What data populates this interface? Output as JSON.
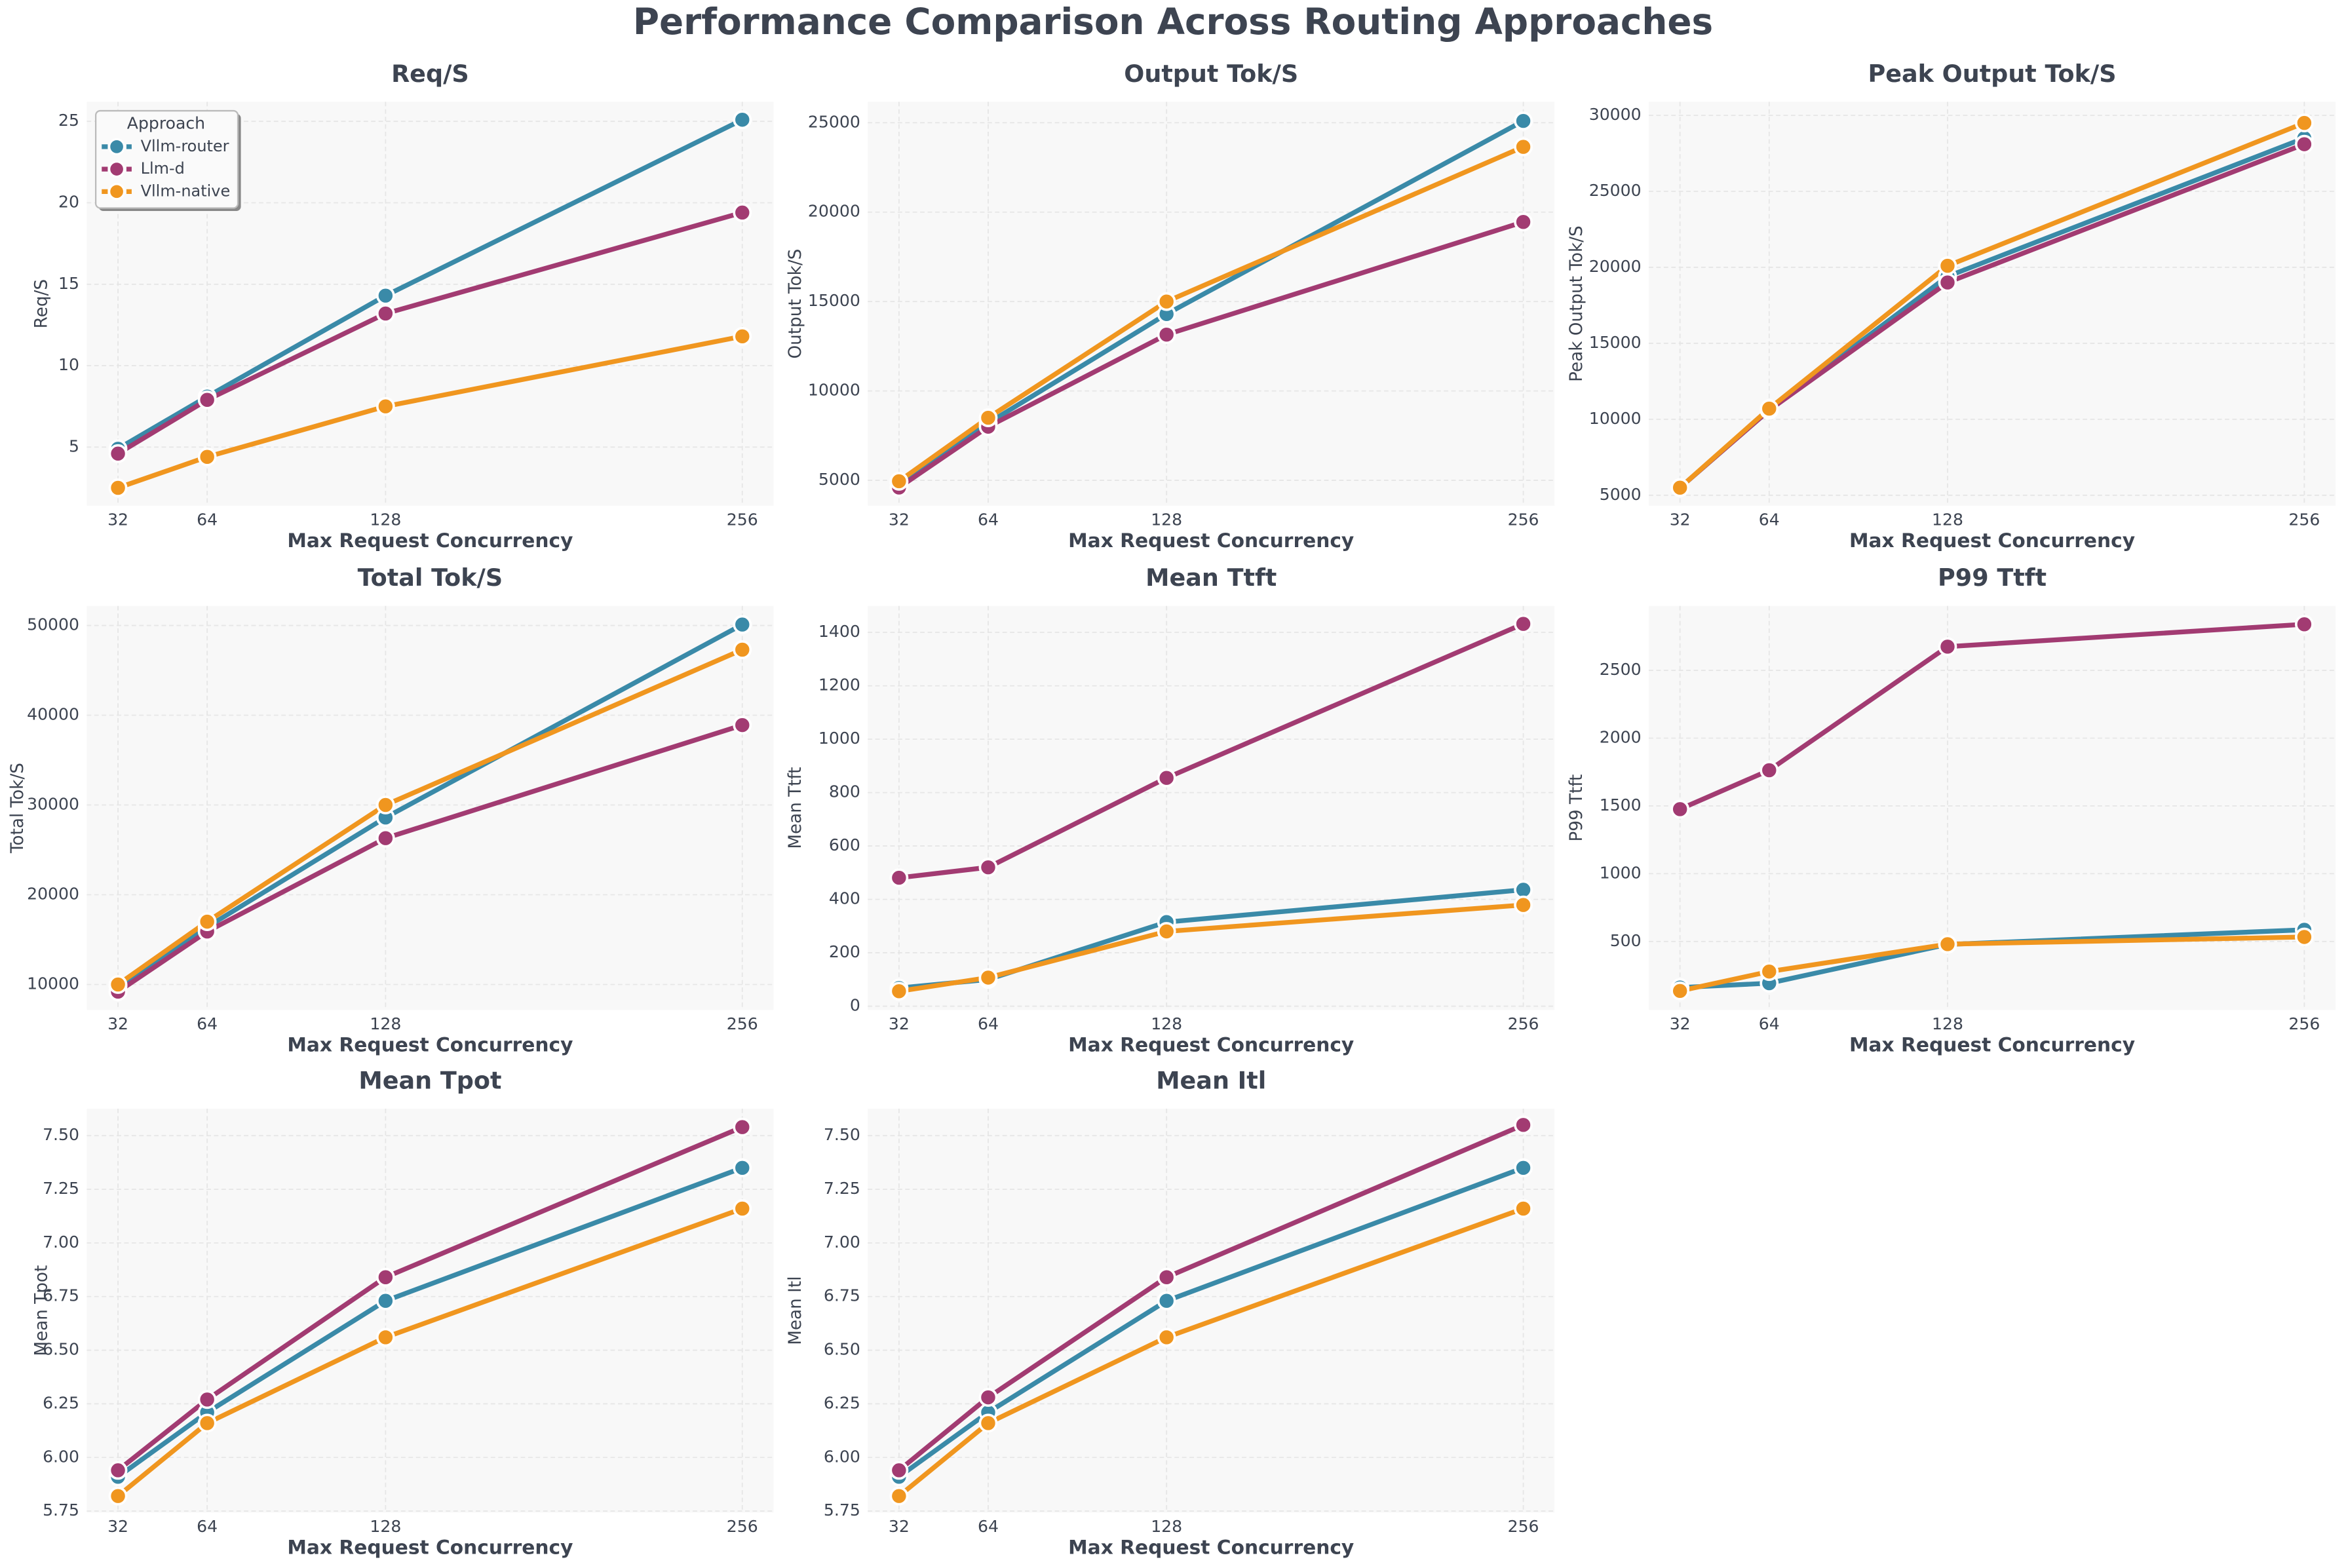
{
  "title": "Performance Comparison Across Routing Approaches",
  "chart_data": [
    {
      "type": "line",
      "title": "Req/S",
      "xlabel": "Max Request Concurrency",
      "ylabel": "Req/S",
      "x": [
        32,
        64,
        128,
        256
      ],
      "xlim": [
        20.8,
        267.2
      ],
      "xticks": [
        32,
        64,
        128,
        256
      ],
      "ylim": [
        1.4,
        26.2
      ],
      "yticks": [
        5,
        10,
        15,
        20,
        25
      ],
      "grid": true,
      "legend": "upper left",
      "legend_title": "Approach",
      "series": [
        {
          "name": "Vllm-router",
          "color": "#3a8aa8",
          "values": [
            4.9,
            8.1,
            14.3,
            25.1
          ]
        },
        {
          "name": "Llm-d",
          "color": "#a23b72",
          "values": [
            4.6,
            7.9,
            13.2,
            19.4
          ]
        },
        {
          "name": "Vllm-native",
          "color": "#f0961f",
          "values": [
            2.5,
            4.4,
            7.5,
            11.8
          ]
        }
      ]
    },
    {
      "type": "line",
      "title": "Output Tok/S",
      "xlabel": "Max Request Concurrency",
      "ylabel": "Output Tok/S",
      "x": [
        32,
        64,
        128,
        256
      ],
      "xlim": [
        20.8,
        267.2
      ],
      "xticks": [
        32,
        64,
        128,
        256
      ],
      "ylim": [
        3580,
        26170
      ],
      "yticks": [
        5000,
        10000,
        15000,
        20000,
        25000
      ],
      "grid": true,
      "series": [
        {
          "color": "#3a8aa8",
          "values": [
            4900,
            8200,
            14300,
            25100
          ]
        },
        {
          "color": "#a23b72",
          "values": [
            4600,
            8000,
            13150,
            19450
          ]
        },
        {
          "color": "#f0961f",
          "values": [
            4950,
            8500,
            15000,
            23650
          ]
        }
      ]
    },
    {
      "type": "line",
      "title": "Peak Output Tok/S",
      "xlabel": "Max Request Concurrency",
      "ylabel": "Peak Output Tok/S",
      "x": [
        32,
        64,
        128,
        256
      ],
      "xlim": [
        20.8,
        267.2
      ],
      "xticks": [
        32,
        64,
        128,
        256
      ],
      "ylim": [
        4310,
        30890
      ],
      "yticks": [
        5000,
        10000,
        15000,
        20000,
        25000,
        30000
      ],
      "grid": true,
      "series": [
        {
          "color": "#3a8aa8",
          "values": [
            5500,
            10600,
            19400,
            28500
          ]
        },
        {
          "color": "#a23b72",
          "values": [
            5500,
            10600,
            19000,
            28100
          ]
        },
        {
          "color": "#f0961f",
          "values": [
            5500,
            10700,
            20100,
            29500
          ]
        }
      ]
    },
    {
      "type": "line",
      "title": "Total Tok/S",
      "xlabel": "Max Request Concurrency",
      "ylabel": "Total Tok/S",
      "x": [
        32,
        64,
        128,
        256
      ],
      "xlim": [
        20.8,
        267.2
      ],
      "xticks": [
        32,
        64,
        128,
        256
      ],
      "ylim": [
        7170,
        52170
      ],
      "yticks": [
        10000,
        20000,
        30000,
        40000,
        50000
      ],
      "grid": true,
      "series": [
        {
          "color": "#3a8aa8",
          "values": [
            9800,
            16400,
            28600,
            50100
          ]
        },
        {
          "color": "#a23b72",
          "values": [
            9200,
            15900,
            26300,
            38900
          ]
        },
        {
          "color": "#f0961f",
          "values": [
            10000,
            17000,
            30000,
            47300
          ]
        }
      ]
    },
    {
      "type": "line",
      "title": "Mean Ttft",
      "xlabel": "Max Request Concurrency",
      "ylabel": "Mean Ttft",
      "x": [
        32,
        64,
        128,
        256
      ],
      "xlim": [
        20.8,
        267.2
      ],
      "xticks": [
        32,
        64,
        128,
        256
      ],
      "ylim": [
        -14,
        1499
      ],
      "yticks": [
        0,
        200,
        400,
        600,
        800,
        1000,
        1200,
        1400
      ],
      "grid": true,
      "series": [
        {
          "color": "#3a8aa8",
          "values": [
            68,
            100,
            315,
            436
          ]
        },
        {
          "color": "#a23b72",
          "values": [
            481,
            520,
            855,
            1432
          ]
        },
        {
          "color": "#f0961f",
          "values": [
            56,
            107,
            280,
            379
          ]
        }
      ]
    },
    {
      "type": "line",
      "title": "P99 Ttft",
      "xlabel": "Max Request Concurrency",
      "ylabel": "P99 Ttft",
      "x": [
        32,
        64,
        128,
        256
      ],
      "xlim": [
        20.8,
        267.2
      ],
      "xticks": [
        32,
        64,
        128,
        256
      ],
      "ylim": [
        -5,
        2975
      ],
      "yticks": [
        500,
        1000,
        1500,
        2000,
        2500
      ],
      "grid": true,
      "series": [
        {
          "color": "#3a8aa8",
          "values": [
            160,
            192,
            478,
            586
          ]
        },
        {
          "color": "#a23b72",
          "values": [
            1476,
            1763,
            2675,
            2840
          ]
        },
        {
          "color": "#f0961f",
          "values": [
            135,
            278,
            480,
            533
          ]
        }
      ]
    },
    {
      "type": "line",
      "title": "Mean Tpot",
      "xlabel": "Max Request Concurrency",
      "ylabel": "Mean Tpot",
      "x": [
        32,
        64,
        128,
        256
      ],
      "xlim": [
        20.8,
        267.2
      ],
      "xticks": [
        32,
        64,
        128,
        256
      ],
      "ylim": [
        5.743,
        7.626
      ],
      "yticks": [
        5.75,
        {
          "value": 6,
          "label": "6.00"
        },
        6.25,
        {
          "value": 6.5,
          "label": "6.50"
        },
        6.75,
        {
          "value": 7,
          "label": "7.00"
        },
        7.25,
        {
          "value": 7.5,
          "label": "7.50"
        }
      ],
      "grid": true,
      "series": [
        {
          "color": "#3a8aa8",
          "values": [
            5.91,
            6.21,
            6.73,
            7.35
          ]
        },
        {
          "color": "#a23b72",
          "values": [
            5.94,
            6.27,
            6.84,
            7.54
          ]
        },
        {
          "color": "#f0961f",
          "values": [
            5.82,
            6.16,
            6.56,
            7.16
          ]
        }
      ]
    },
    {
      "type": "line",
      "title": "Mean Itl",
      "xlabel": "Max Request Concurrency",
      "ylabel": "Mean Itl",
      "x": [
        32,
        64,
        128,
        256
      ],
      "xlim": [
        20.8,
        267.2
      ],
      "xticks": [
        32,
        64,
        128,
        256
      ],
      "ylim": [
        5.743,
        7.626
      ],
      "yticks": [
        5.75,
        {
          "value": 6,
          "label": "6.00"
        },
        6.25,
        {
          "value": 6.5,
          "label": "6.50"
        },
        6.75,
        {
          "value": 7,
          "label": "7.00"
        },
        7.25,
        {
          "value": 7.5,
          "label": "7.50"
        }
      ],
      "grid": true,
      "series": [
        {
          "color": "#3a8aa8",
          "values": [
            5.91,
            6.21,
            6.73,
            7.35
          ]
        },
        {
          "color": "#a23b72",
          "values": [
            5.94,
            6.28,
            6.84,
            7.55
          ]
        },
        {
          "color": "#f0961f",
          "values": [
            5.82,
            6.16,
            6.56,
            7.16
          ]
        }
      ]
    }
  ]
}
